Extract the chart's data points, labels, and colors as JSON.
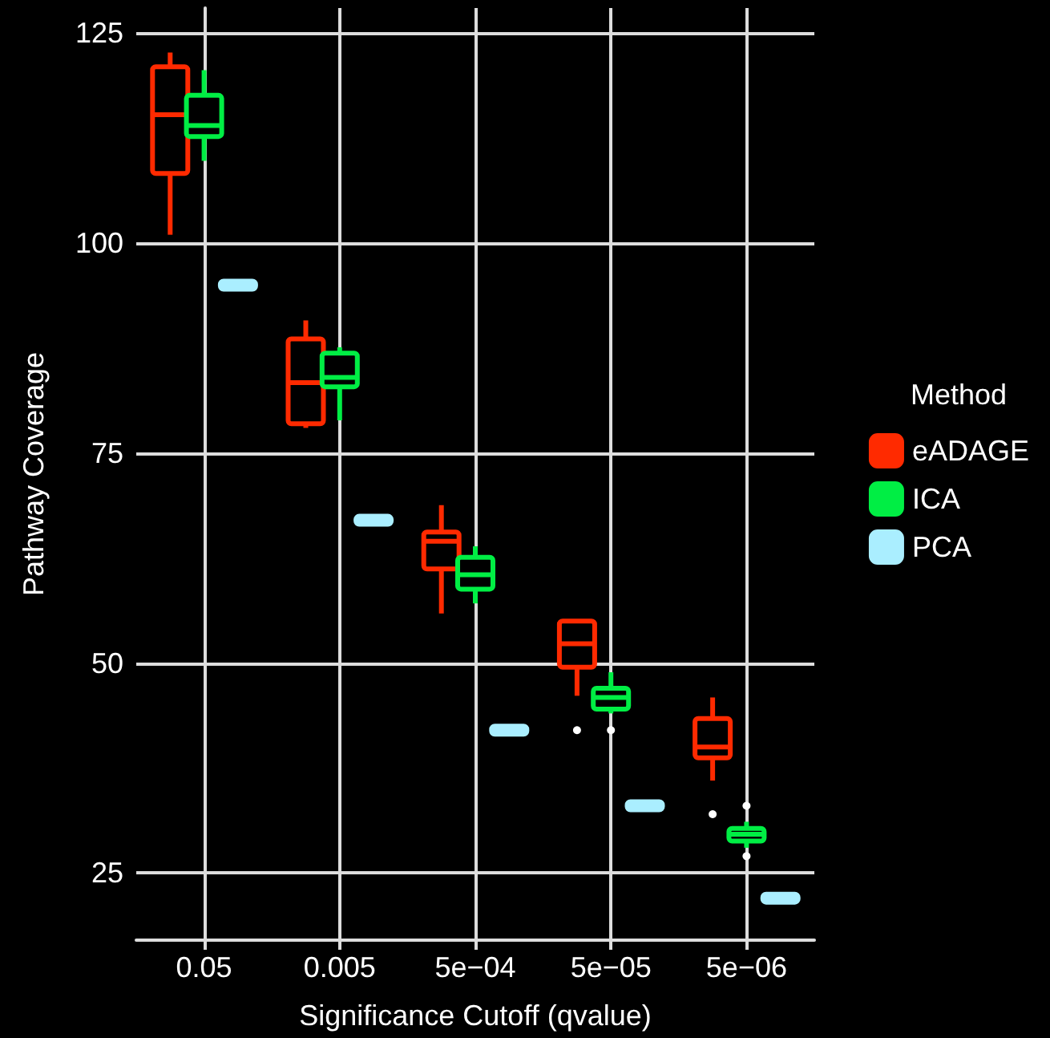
{
  "chart_data": {
    "type": "box",
    "xlabel": "Significance Cutoff (qvalue)",
    "ylabel": "Pathway Coverage",
    "legend_title": "Method",
    "categories": [
      "0.05",
      "0.005",
      "5e−04",
      "5e−05",
      "5e−06"
    ],
    "ylim": [
      17,
      128
    ],
    "yticks": [
      25,
      50,
      75,
      100,
      125
    ],
    "grid": true,
    "legend": "right",
    "series": [
      {
        "name": "eADAGE",
        "color": "#ff2a00",
        "boxes": [
          {
            "low": 101,
            "q1": 108.3,
            "median": 115.3,
            "q3": 121,
            "high": 122.7
          },
          {
            "low": 78,
            "q1": 78.5,
            "median": 83.4,
            "q3": 88.6,
            "high": 90.8
          },
          {
            "low": 55.9,
            "q1": 61.2,
            "median": 64.5,
            "q3": 65.6,
            "high": 68.8
          },
          {
            "low": 46.1,
            "q1": 49.5,
            "median": 52.3,
            "q3": 55,
            "high": 55,
            "outliers": [
              42
            ]
          },
          {
            "low": 36,
            "q1": 38.7,
            "median": 40,
            "q3": 43.4,
            "high": 45.9,
            "outliers": [
              32
            ]
          }
        ]
      },
      {
        "name": "ICA",
        "color": "#00ee44",
        "boxes": [
          {
            "low": 109.8,
            "q1": 112.7,
            "median": 114,
            "q3": 117.6,
            "high": 120.6
          },
          {
            "low": 78.9,
            "q1": 82.9,
            "median": 84,
            "q3": 86.9,
            "high": 87.6
          },
          {
            "low": 57.1,
            "q1": 58.8,
            "median": 60.5,
            "q3": 62.6,
            "high": 63.9
          },
          {
            "low": 44,
            "q1": 44.5,
            "median": 45.9,
            "q3": 47,
            "high": 48.9,
            "outliers": [
              42
            ]
          },
          {
            "low": 28,
            "q1": 28.8,
            "median": 29.6,
            "q3": 30.3,
            "high": 31.1,
            "outliers": [
              33,
              27
            ]
          }
        ]
      },
      {
        "name": "PCA",
        "color": "#aaeeff",
        "boxes": [
          {
            "low": 95,
            "q1": 95,
            "median": 95,
            "q3": 95,
            "high": 95
          },
          {
            "low": 67,
            "q1": 67,
            "median": 67,
            "q3": 67,
            "high": 67
          },
          {
            "low": 42,
            "q1": 42,
            "median": 42,
            "q3": 42,
            "high": 42
          },
          {
            "low": 33,
            "q1": 33,
            "median": 33,
            "q3": 33,
            "high": 33
          },
          {
            "low": 22,
            "q1": 22,
            "median": 22,
            "q3": 22,
            "high": 22
          }
        ]
      }
    ]
  }
}
